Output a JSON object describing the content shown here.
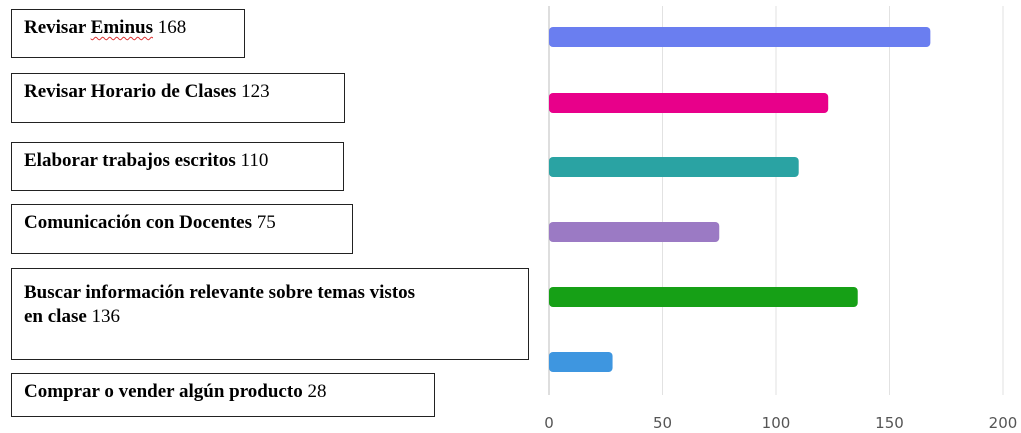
{
  "chart_data": {
    "type": "bar",
    "orientation": "horizontal",
    "categories": [
      "Revisar Eminus",
      "Revisar Horario de Clases",
      "Elaborar trabajos escritos",
      "Comunicación con Docentes",
      "Buscar información relevante sobre temas vistos en clase",
      "Comprar o vender algún producto"
    ],
    "values": [
      168,
      123,
      110,
      75,
      136,
      28
    ],
    "colors": [
      "#6a7ef0",
      "#e8008a",
      "#2aa3a3",
      "#9b7ac4",
      "#16a016",
      "#3e96e0"
    ],
    "xlim": [
      0,
      200
    ],
    "xticks": [
      0,
      50,
      100,
      150,
      200
    ],
    "grid": true,
    "title": "",
    "xlabel": "",
    "ylabel": ""
  },
  "labels": [
    {
      "name": "Revisar Eminus",
      "value": "168"
    },
    {
      "name": "Revisar Horario de Clases",
      "value": "123"
    },
    {
      "name": "Elaborar trabajos escritos",
      "value": "110"
    },
    {
      "name": "Comunicación con Docentes",
      "value": "75"
    },
    {
      "name_line1": "Buscar información relevante sobre temas vistos",
      "name_line2": "en clase",
      "value": "136"
    },
    {
      "name": "Comprar o vender algún producto",
      "value": "28"
    }
  ]
}
